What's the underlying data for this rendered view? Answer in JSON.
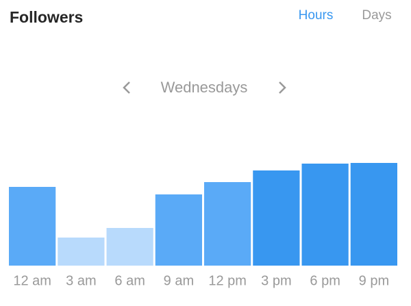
{
  "header": {
    "title": "Followers",
    "tabs": [
      "Hours",
      "Days"
    ],
    "active_tab": 0
  },
  "day_selector": "Wednesdays",
  "chart_data": {
    "type": "bar",
    "categories": [
      "12 am",
      "3 am",
      "6 am",
      "9 am",
      "12 pm",
      "3 pm",
      "6 pm",
      "9 pm"
    ],
    "values": [
      115,
      41,
      55,
      104,
      122,
      139,
      149,
      150
    ],
    "colors": [
      "#5aaaf7",
      "#b8dafc",
      "#b8dafc",
      "#5aaaf7",
      "#5aaaf7",
      "#3897f0",
      "#3897f0",
      "#3897f0"
    ],
    "ylim": [
      0,
      200
    ]
  }
}
